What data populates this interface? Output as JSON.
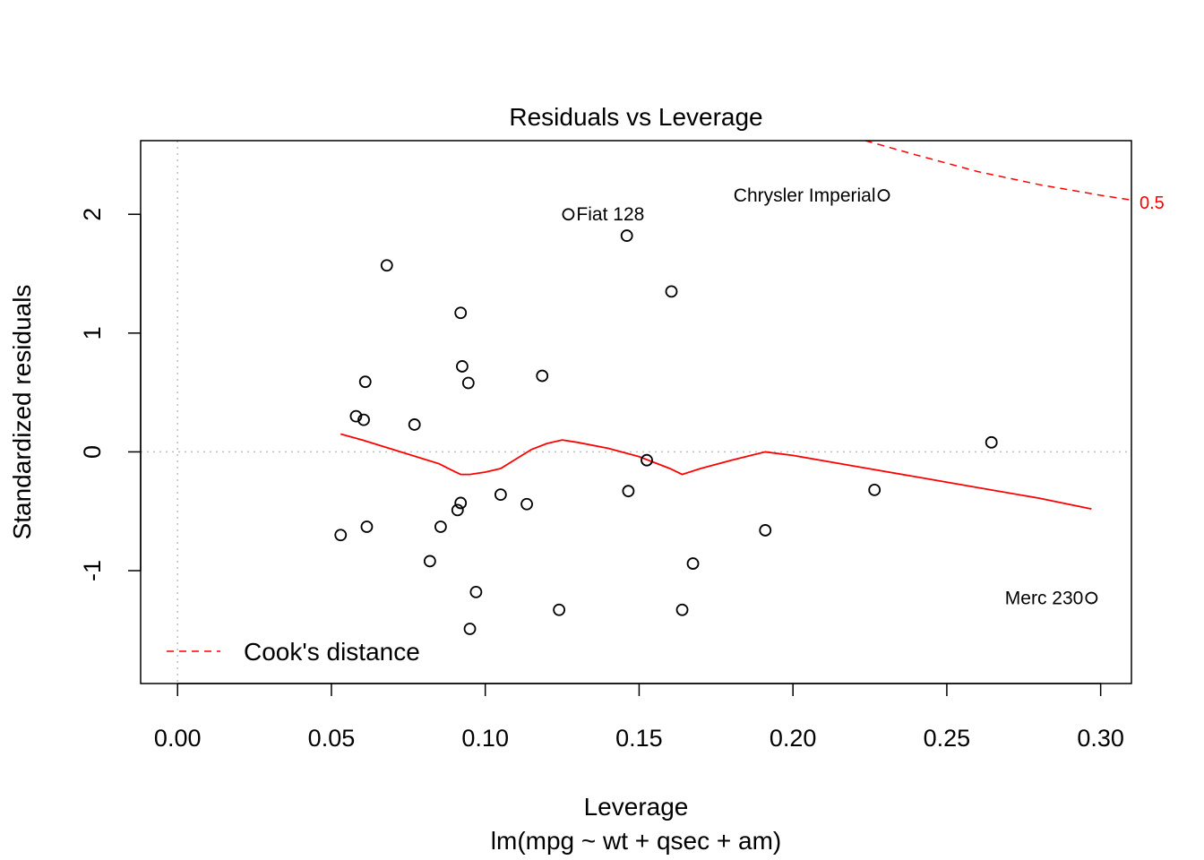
{
  "chart_data": {
    "type": "scatter",
    "title": "Residuals vs Leverage",
    "xlabel": "Leverage",
    "sublabel": "lm(mpg ~ wt + qsec + am)",
    "ylabel": "Standardized residuals",
    "xlim": [
      -0.012,
      0.31
    ],
    "ylim": [
      -1.95,
      2.62
    ],
    "xticks": [
      0.0,
      0.05,
      0.1,
      0.15,
      0.2,
      0.25,
      0.3
    ],
    "xtick_labels": [
      "0.00",
      "0.05",
      "0.10",
      "0.15",
      "0.20",
      "0.25",
      "0.30"
    ],
    "yticks": [
      -1,
      0,
      1,
      2
    ],
    "ytick_labels": [
      "-1",
      "0",
      "1",
      "2"
    ],
    "points": [
      {
        "x": 0.053,
        "y": -0.7
      },
      {
        "x": 0.058,
        "y": 0.3
      },
      {
        "x": 0.0605,
        "y": 0.27
      },
      {
        "x": 0.061,
        "y": 0.59
      },
      {
        "x": 0.0615,
        "y": -0.63
      },
      {
        "x": 0.068,
        "y": 1.57
      },
      {
        "x": 0.077,
        "y": 0.23
      },
      {
        "x": 0.082,
        "y": -0.92
      },
      {
        "x": 0.0855,
        "y": -0.63
      },
      {
        "x": 0.091,
        "y": -0.49
      },
      {
        "x": 0.092,
        "y": -0.43
      },
      {
        "x": 0.092,
        "y": 1.17
      },
      {
        "x": 0.0925,
        "y": 0.72
      },
      {
        "x": 0.0945,
        "y": 0.58
      },
      {
        "x": 0.095,
        "y": -1.49
      },
      {
        "x": 0.097,
        "y": -1.18
      },
      {
        "x": 0.105,
        "y": -0.36
      },
      {
        "x": 0.1135,
        "y": -0.44
      },
      {
        "x": 0.1185,
        "y": 0.64
      },
      {
        "x": 0.124,
        "y": -1.33
      },
      {
        "x": 0.127,
        "y": 2.0,
        "label": "Fiat 128"
      },
      {
        "x": 0.146,
        "y": 1.82
      },
      {
        "x": 0.1465,
        "y": -0.33
      },
      {
        "x": 0.1525,
        "y": -0.07
      },
      {
        "x": 0.1605,
        "y": 1.35
      },
      {
        "x": 0.164,
        "y": -1.33
      },
      {
        "x": 0.1675,
        "y": -0.94
      },
      {
        "x": 0.191,
        "y": -0.66
      },
      {
        "x": 0.2265,
        "y": -0.32
      },
      {
        "x": 0.2295,
        "y": 2.16,
        "label": "Chrysler Imperial"
      },
      {
        "x": 0.2645,
        "y": 0.08
      },
      {
        "x": 0.297,
        "y": -1.23,
        "label": "Merc 230"
      }
    ],
    "smooth_line": {
      "color": "#ff0000",
      "x": [
        0.053,
        0.06,
        0.07,
        0.08,
        0.085,
        0.088,
        0.092,
        0.095,
        0.1,
        0.105,
        0.11,
        0.115,
        0.12,
        0.125,
        0.13,
        0.14,
        0.15,
        0.16,
        0.164,
        0.17,
        0.18,
        0.191,
        0.2,
        0.22,
        0.24,
        0.26,
        0.28,
        0.297
      ],
      "y": [
        0.15,
        0.1,
        0.02,
        -0.06,
        -0.1,
        -0.14,
        -0.19,
        -0.19,
        -0.17,
        -0.14,
        -0.06,
        0.02,
        0.07,
        0.1,
        0.08,
        0.03,
        -0.04,
        -0.14,
        -0.19,
        -0.14,
        -0.07,
        0.0,
        -0.03,
        -0.12,
        -0.21,
        -0.3,
        -0.39,
        -0.48
      ]
    },
    "cooks_distance": {
      "level": 0.5,
      "level_label": "0.5",
      "color": "#ff0000",
      "x": [
        0.2235,
        0.24,
        0.26,
        0.28,
        0.3,
        0.31
      ],
      "y": [
        2.62,
        2.5,
        2.36,
        2.25,
        2.16,
        2.12
      ]
    },
    "reference_lines": {
      "h": 0,
      "v": 0,
      "color": "#bebebe"
    },
    "legend": {
      "position": "bottom-left",
      "label": "Cook's distance"
    }
  }
}
